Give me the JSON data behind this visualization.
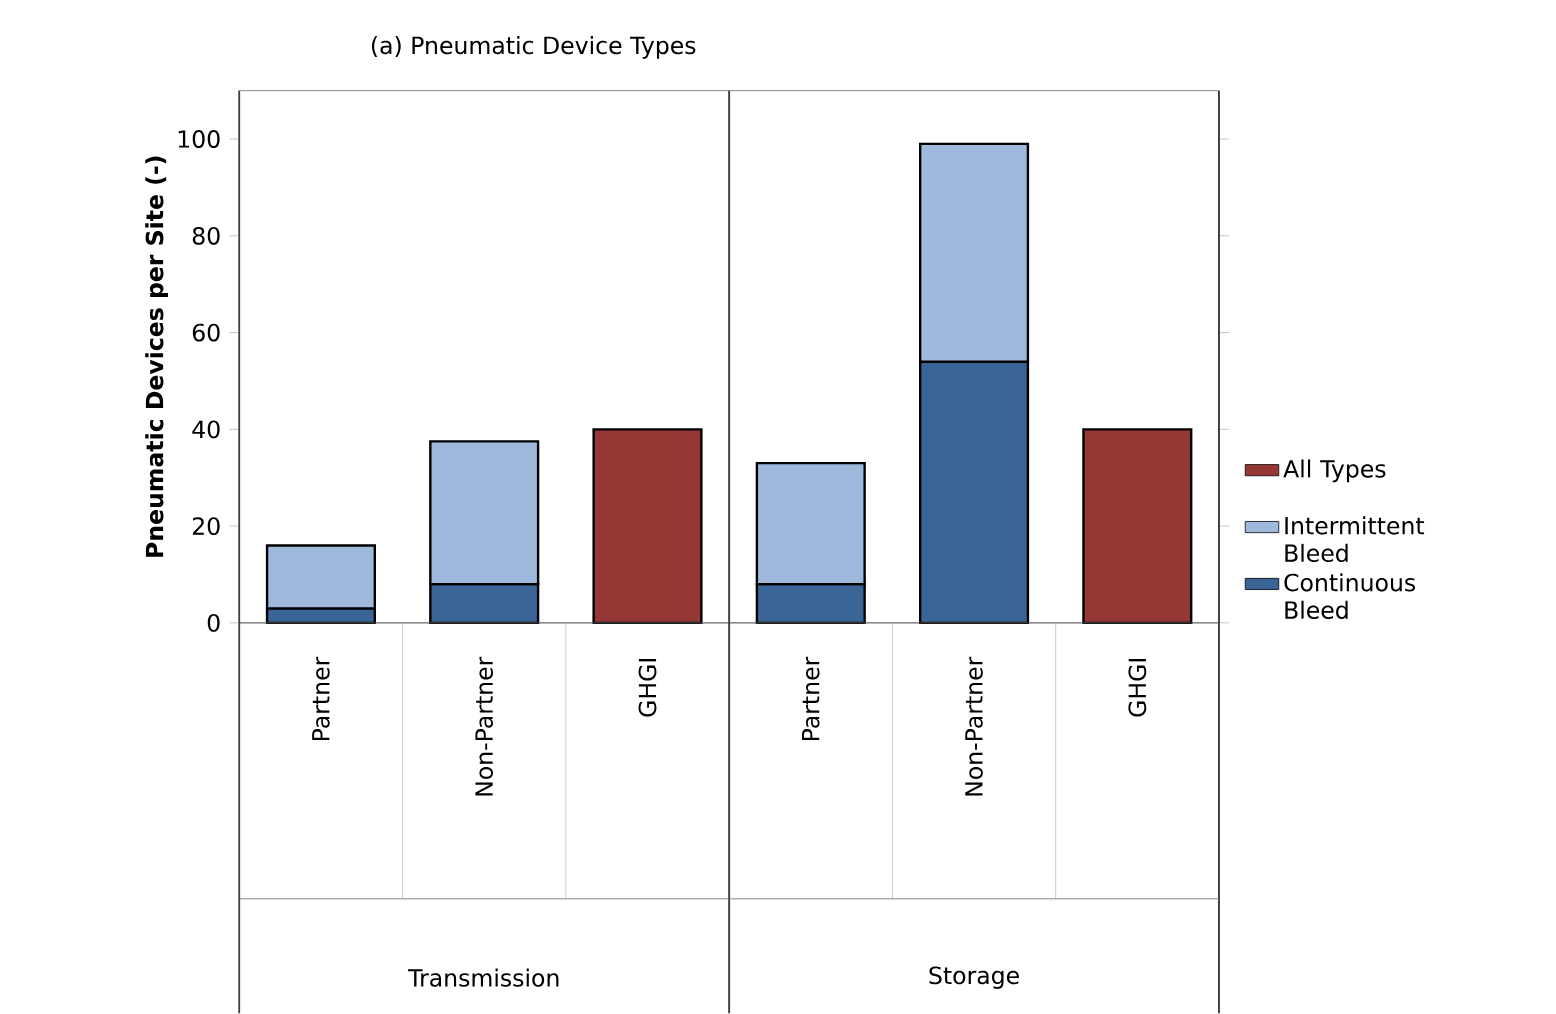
{
  "chart_data": {
    "type": "bar",
    "title": "(a) Pneumatic Device Types",
    "ylabel": "Pneumatic Devices per Site (-)",
    "categories": [
      "Partner",
      "Non-Partner",
      "GHGI",
      "Partner",
      "Non-Partner",
      "GHGI"
    ],
    "annotations": [
      "Transmission",
      "Storage"
    ],
    "stacked": true,
    "series": [
      {
        "name": "Continuous Bleed",
        "color": "#3a6496",
        "values": [
          3,
          8,
          null,
          8,
          54,
          null
        ]
      },
      {
        "name": "Intermittent Bleed",
        "color": "#9fb9dc",
        "values": [
          13,
          29.5,
          null,
          25,
          45,
          null
        ]
      },
      {
        "name": "All Types",
        "color": "#953735",
        "values": [
          null,
          null,
          40,
          null,
          null,
          40
        ]
      }
    ],
    "ylim": [
      0,
      110
    ],
    "yticks": [
      0,
      20,
      40,
      60,
      80,
      100
    ],
    "legend": "right",
    "grid": false
  }
}
